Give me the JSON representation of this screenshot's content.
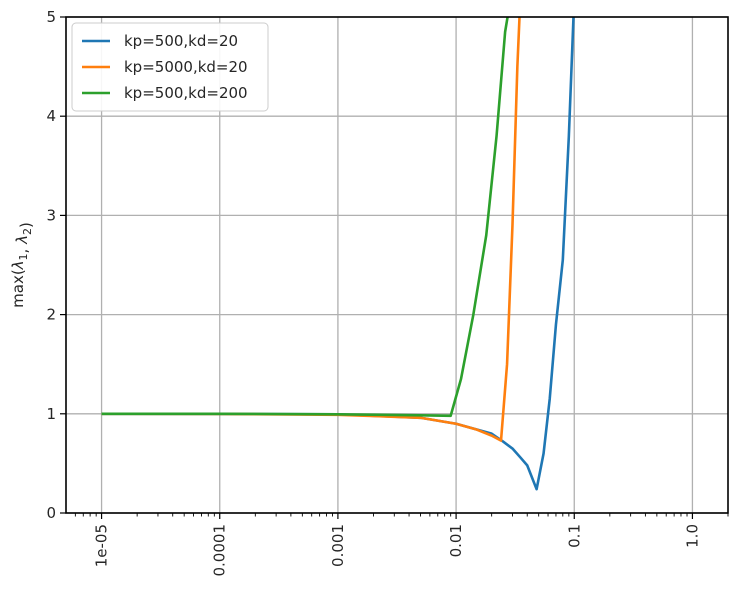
{
  "chart_data": {
    "type": "line",
    "x_scale": "log",
    "xlim": [
      5e-06,
      2
    ],
    "ylim": [
      0,
      5
    ],
    "ylabel": "max(λ1, λ2)",
    "xlabel": "",
    "title": "",
    "grid": true,
    "legend_position": "top-left",
    "x_ticks": [
      1e-05,
      0.0001,
      0.001,
      0.01,
      0.1,
      1.0
    ],
    "x_tick_labels": [
      "1e-05",
      "0.0001",
      "0.001",
      "0.01",
      "0.1",
      "1.0"
    ],
    "y_ticks": [
      0,
      1,
      2,
      3,
      4,
      5
    ],
    "y_tick_labels": [
      "0",
      "1",
      "2",
      "3",
      "4",
      "5"
    ],
    "series": [
      {
        "name": "kp=500,kd=20",
        "color": "#1f77b4",
        "x": [
          1e-05,
          0.0001,
          0.001,
          0.005,
          0.01,
          0.02,
          0.025,
          0.03,
          0.035,
          0.04,
          0.048,
          0.055,
          0.062,
          0.07,
          0.08,
          0.09,
          0.1
        ],
        "y": [
          1.0,
          0.999,
          0.995,
          0.96,
          0.9,
          0.8,
          0.72,
          0.65,
          0.56,
          0.48,
          0.24,
          0.6,
          1.15,
          1.9,
          2.55,
          3.8,
          5.2
        ]
      },
      {
        "name": "kp=5000,kd=20",
        "color": "#ff7f0e",
        "x": [
          1e-05,
          0.0001,
          0.001,
          0.005,
          0.01,
          0.015,
          0.02,
          0.024,
          0.027,
          0.03,
          0.033,
          0.035,
          0.037
        ],
        "y": [
          1.0,
          0.999,
          0.99,
          0.96,
          0.9,
          0.84,
          0.78,
          0.73,
          1.5,
          2.9,
          4.5,
          5.2,
          5.6
        ]
      },
      {
        "name": "kp=500,kd=200",
        "color": "#2ca02c",
        "x": [
          1e-05,
          0.0001,
          0.001,
          0.005,
          0.009,
          0.011,
          0.014,
          0.018,
          0.022,
          0.026,
          0.03
        ],
        "y": [
          1.0,
          1.0,
          0.995,
          0.985,
          0.98,
          1.35,
          2.0,
          2.8,
          3.8,
          4.85,
          5.3
        ]
      }
    ]
  }
}
